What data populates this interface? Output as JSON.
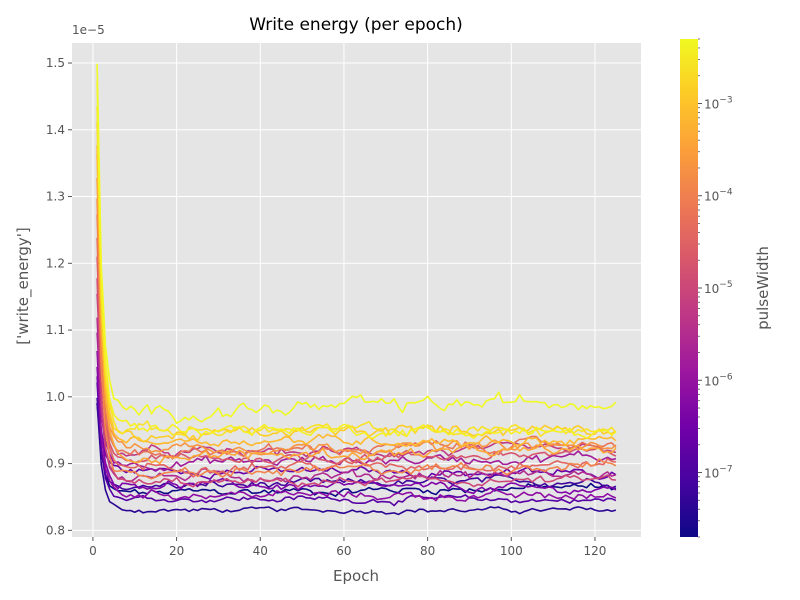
{
  "chart_data": {
    "type": "line",
    "title": "Write energy (per epoch)",
    "xlabel": "Epoch",
    "ylabel": "['write_energy']",
    "offset_label": "1e−5",
    "xlim": [
      -5,
      131
    ],
    "ylim": [
      0.79,
      1.53
    ],
    "x_ticks": [
      0,
      20,
      40,
      60,
      80,
      100,
      120
    ],
    "y_ticks": [
      0.8,
      0.9,
      1.0,
      1.1,
      1.2,
      1.3,
      1.4,
      1.5
    ],
    "y_tick_labels": [
      "0.8",
      "0.9",
      "1.0",
      "1.1",
      "1.2",
      "1.3",
      "1.4",
      "1.5"
    ],
    "grid": true,
    "legend": "none",
    "background": "#e5e5e5",
    "colorbar": {
      "label": "pulseWidth",
      "scale": "log",
      "range": [
        2e-08,
        0.005
      ],
      "ticks": [
        {
          "exp": -7,
          "base": "10",
          "power": "−7"
        },
        {
          "exp": -6,
          "base": "10",
          "power": "−6"
        },
        {
          "exp": -5,
          "base": "10",
          "power": "−5"
        },
        {
          "exp": -4,
          "base": "10",
          "power": "−4"
        },
        {
          "exp": -3,
          "base": "10",
          "power": "−3"
        }
      ],
      "colormap": [
        "#0d0887",
        "#46039f",
        "#7201a8",
        "#9c179e",
        "#bd3786",
        "#d8576b",
        "#ed7953",
        "#fb9f3a",
        "#fdca26",
        "#f0f921"
      ]
    },
    "epochs": 125,
    "series": [
      {
        "pulse_width": 2.1e-08,
        "color": "#0d0887",
        "start": 0.99,
        "plateau": 0.855,
        "end": 0.865,
        "noise": 0.005
      },
      {
        "pulse_width": 4e-08,
        "color": "#2a0593",
        "start": 0.99,
        "plateau": 0.83,
        "end": 0.83,
        "noise": 0.003
      },
      {
        "pulse_width": 7e-08,
        "color": "#41049d",
        "start": 1.0,
        "plateau": 0.865,
        "end": 0.875,
        "noise": 0.005
      },
      {
        "pulse_width": 1.2e-07,
        "color": "#5601a4",
        "start": 1.02,
        "plateau": 0.848,
        "end": 0.845,
        "noise": 0.004
      },
      {
        "pulse_width": 2.2e-07,
        "color": "#6a00a8",
        "start": 1.03,
        "plateau": 0.89,
        "end": 0.885,
        "noise": 0.005
      },
      {
        "pulse_width": 4e-07,
        "color": "#7e03a8",
        "start": 1.05,
        "plateau": 0.87,
        "end": 0.86,
        "noise": 0.005
      },
      {
        "pulse_width": 7e-07,
        "color": "#8f0da4",
        "start": 1.07,
        "plateau": 0.855,
        "end": 0.85,
        "noise": 0.005
      },
      {
        "pulse_width": 1.2e-06,
        "color": "#a11b9b",
        "start": 1.1,
        "plateau": 0.9,
        "end": 0.91,
        "noise": 0.006
      },
      {
        "pulse_width": 2.2e-06,
        "color": "#b12a90",
        "start": 1.12,
        "plateau": 0.88,
        "end": 0.885,
        "noise": 0.006
      },
      {
        "pulse_width": 4e-06,
        "color": "#bf3984",
        "start": 1.15,
        "plateau": 0.915,
        "end": 0.92,
        "noise": 0.006
      },
      {
        "pulse_width": 7e-06,
        "color": "#cc4778",
        "start": 1.18,
        "plateau": 0.87,
        "end": 0.875,
        "noise": 0.005
      },
      {
        "pulse_width": 1.2e-05,
        "color": "#d6556d",
        "start": 1.21,
        "plateau": 0.905,
        "end": 0.915,
        "noise": 0.006
      },
      {
        "pulse_width": 2.2e-05,
        "color": "#e16462",
        "start": 1.24,
        "plateau": 0.895,
        "end": 0.9,
        "noise": 0.006
      },
      {
        "pulse_width": 4e-05,
        "color": "#ea7457",
        "start": 1.27,
        "plateau": 0.915,
        "end": 0.93,
        "noise": 0.006
      },
      {
        "pulse_width": 7e-05,
        "color": "#f2844b",
        "start": 1.3,
        "plateau": 0.88,
        "end": 0.9,
        "noise": 0.006
      },
      {
        "pulse_width": 0.00012,
        "color": "#f89540",
        "start": 1.33,
        "plateau": 0.925,
        "end": 0.925,
        "noise": 0.006
      },
      {
        "pulse_width": 0.00022,
        "color": "#fca636",
        "start": 1.36,
        "plateau": 0.91,
        "end": 0.92,
        "noise": 0.006
      },
      {
        "pulse_width": 0.0004,
        "color": "#feb92d",
        "start": 1.38,
        "plateau": 0.935,
        "end": 0.935,
        "noise": 0.006
      },
      {
        "pulse_width": 0.0007,
        "color": "#fccd25",
        "start": 1.41,
        "plateau": 0.94,
        "end": 0.955,
        "noise": 0.007
      },
      {
        "pulse_width": 0.0012,
        "color": "#f7e225",
        "start": 1.44,
        "plateau": 0.95,
        "end": 0.95,
        "noise": 0.007
      },
      {
        "pulse_width": 0.0025,
        "color": "#f5f024",
        "start": 1.47,
        "plateau": 0.955,
        "end": 0.945,
        "noise": 0.007
      },
      {
        "pulse_width": 0.005,
        "color": "#f0f921",
        "start": 1.49,
        "plateau": 0.975,
        "end": 0.995,
        "noise": 0.009
      }
    ]
  }
}
